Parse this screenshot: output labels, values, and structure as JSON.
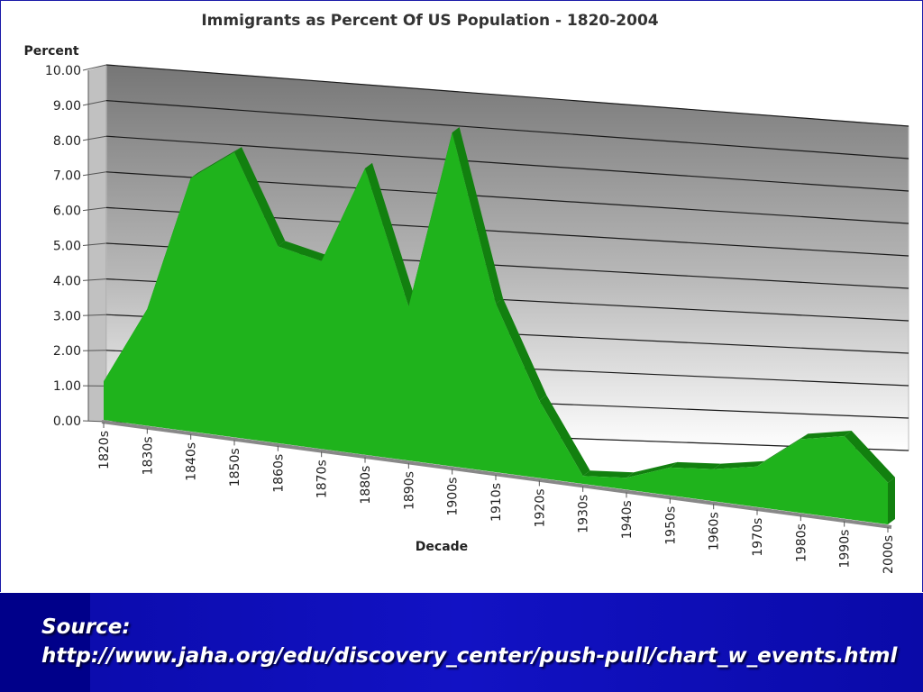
{
  "chart_data": {
    "type": "area",
    "title": "Immigrants as Percent Of US Population - 1820-2004",
    "ylabel": "Percent",
    "xlabel": "Decade",
    "ylim": [
      0,
      10
    ],
    "yticks": [
      "0.00",
      "1.00",
      "2.00",
      "3.00",
      "4.00",
      "5.00",
      "6.00",
      "7.00",
      "8.00",
      "9.00",
      "10.00"
    ],
    "categories": [
      "1820s",
      "1830s",
      "1840s",
      "1850s",
      "1860s",
      "1870s",
      "1880s",
      "1890s",
      "1900s",
      "1910s",
      "1920s",
      "1930s",
      "1940s",
      "1950s",
      "1960s",
      "1970s",
      "1980s",
      "1990s",
      "2000s"
    ],
    "values": [
      1.1,
      3.3,
      7.1,
      7.9,
      5.4,
      5.1,
      7.7,
      4.1,
      8.8,
      4.4,
      2.0,
      0.2,
      0.3,
      0.7,
      0.8,
      1.0,
      1.8,
      2.0,
      1.0
    ],
    "grid": true,
    "legend": "none",
    "style": "3d",
    "colors": {
      "area": "#1fb31c",
      "area_side": "#12800f",
      "wall_top": "#7a7a7a",
      "wall_bottom": "#ffffff"
    }
  },
  "footer": {
    "source_label": "Source:",
    "source_url": "http://www.jaha.org/edu/discovery_center/push-pull/chart_w_events.html"
  }
}
